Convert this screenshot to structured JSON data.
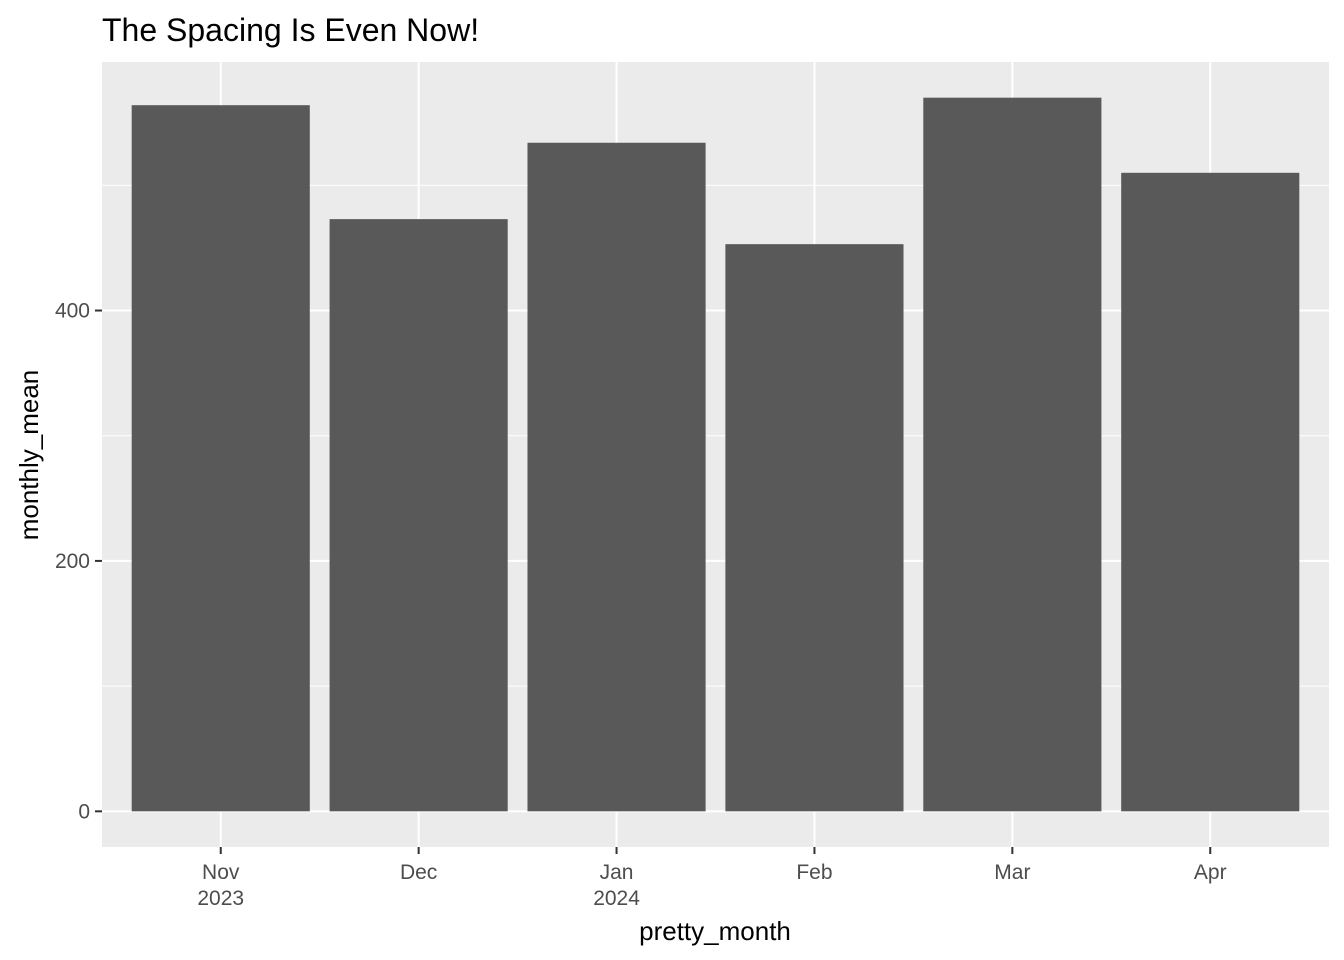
{
  "chart_data": {
    "type": "bar",
    "title": "The Spacing Is Even Now!",
    "xlabel": "pretty_month",
    "ylabel": "monthly_mean",
    "categories": [
      {
        "label": "Nov",
        "sublabel": "2023"
      },
      {
        "label": "Dec",
        "sublabel": ""
      },
      {
        "label": "Jan",
        "sublabel": "2024"
      },
      {
        "label": "Feb",
        "sublabel": ""
      },
      {
        "label": "Mar",
        "sublabel": ""
      },
      {
        "label": "Apr",
        "sublabel": ""
      }
    ],
    "values": [
      564,
      473,
      534,
      453,
      570,
      510
    ],
    "yticks": [
      0,
      200,
      400
    ],
    "ylim": [
      -28.5,
      598.5
    ],
    "grid": true,
    "colors": {
      "panel": "#ebebeb",
      "grid": "#ffffff",
      "bar": "#595959",
      "tick_text": "#4d4d4d",
      "tick_mark": "#333333"
    }
  }
}
